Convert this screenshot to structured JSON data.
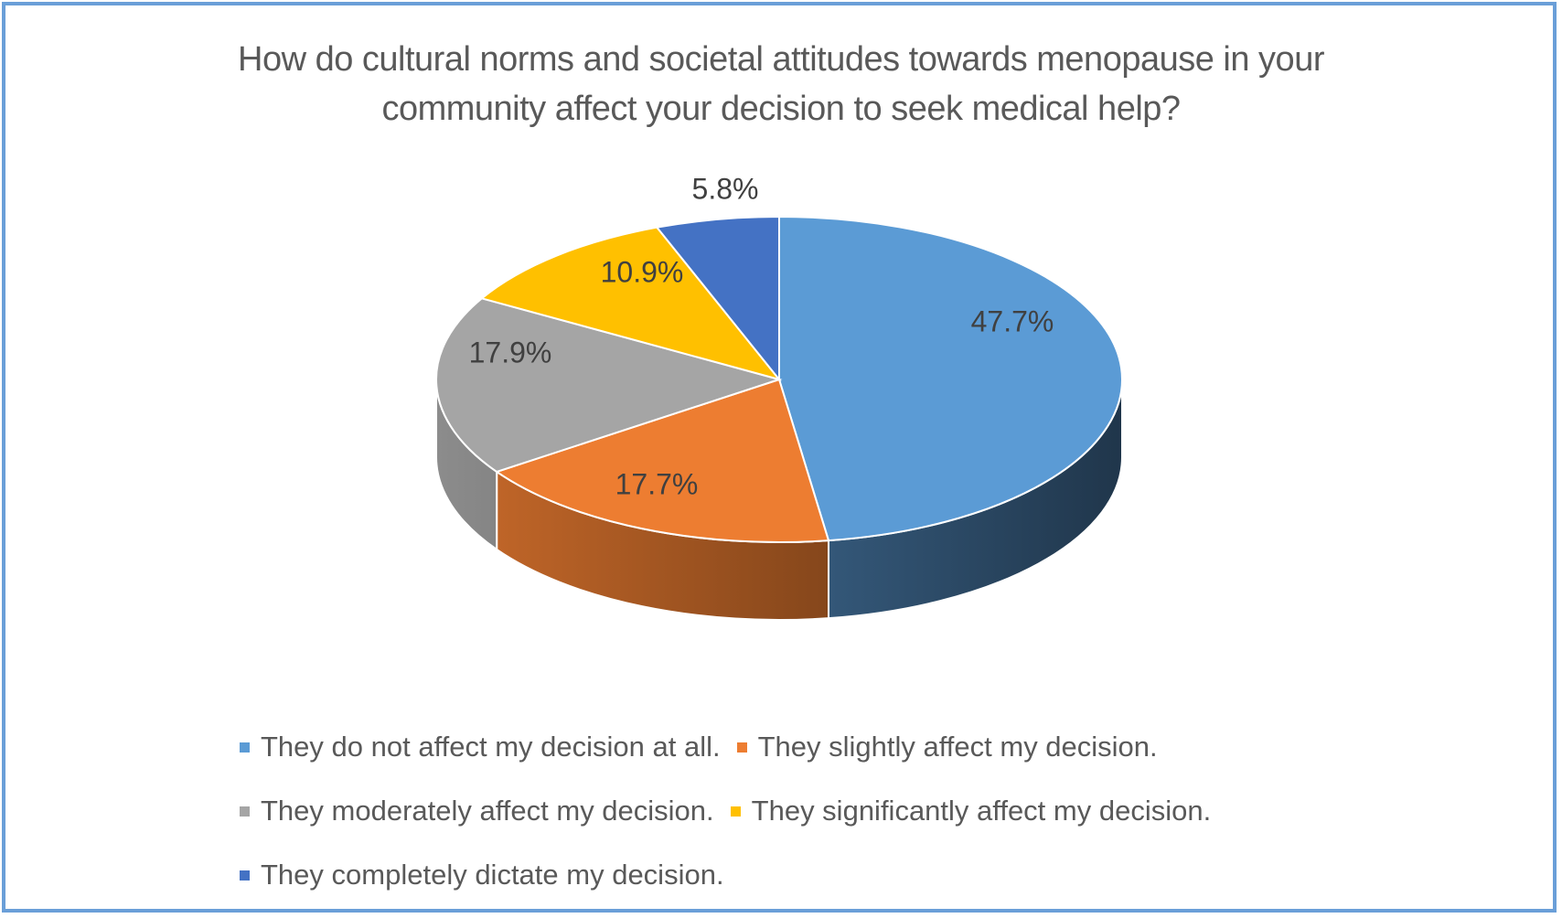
{
  "chart_data": {
    "type": "pie",
    "style": "3d",
    "title": "How do cultural norms and societal attitudes towards menopause in your community affect your decision to seek medical help?",
    "title_lines": [
      "How do cultural norms and societal attitudes towards menopause in your",
      "community affect your decision to seek medical help?"
    ],
    "categories": [
      "They do not affect my decision at all.",
      "They slightly affect my decision.",
      "They moderately affect my decision.",
      "They significantly affect my decision.",
      "They completely dictate my decision."
    ],
    "values": [
      47.7,
      17.7,
      17.9,
      10.9,
      5.8
    ],
    "labels": [
      "47.7%",
      "17.7%",
      "17.9%",
      "10.9%",
      "5.8%"
    ],
    "colors": [
      "#5b9bd5",
      "#ed7d31",
      "#a5a5a5",
      "#ffc000",
      "#4472c4"
    ],
    "legend_position": "bottom"
  },
  "legend": {
    "rows": [
      [
        0,
        1
      ],
      [
        2,
        3
      ],
      [
        4
      ]
    ]
  },
  "frame_color": "#6a9fd8",
  "text_color": "#595959"
}
